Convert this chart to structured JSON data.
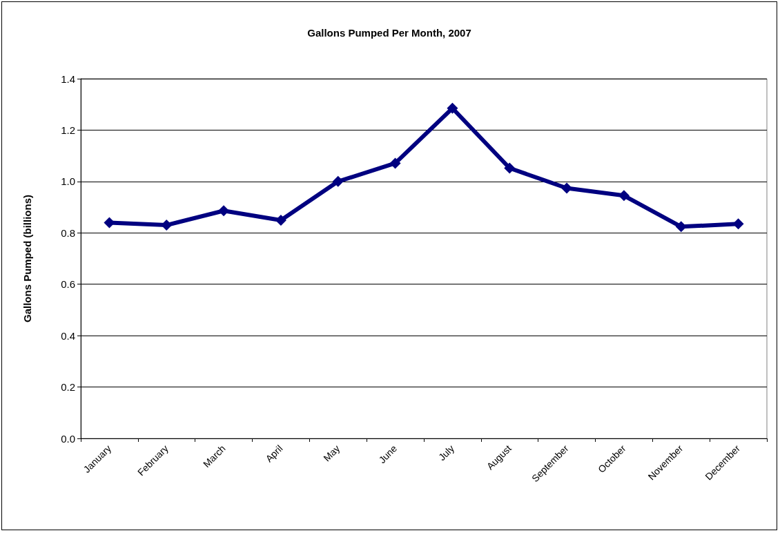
{
  "chart_data": {
    "type": "line",
    "title": "Gallons Pumped Per Month, 2007",
    "ylabel": "Gallons Pumped (billions)",
    "categories": [
      "January",
      "February",
      "March",
      "April",
      "May",
      "June",
      "July",
      "August",
      "September",
      "October",
      "November",
      "December"
    ],
    "series": [
      {
        "color": "#000080",
        "values": [
          0.84,
          0.83,
          0.886,
          0.849,
          1.0,
          1.071,
          1.285,
          1.052,
          0.974,
          0.945,
          0.824,
          0.835
        ]
      }
    ],
    "ylim": [
      0,
      1.4
    ],
    "yticks": [
      {
        "value": 0,
        "label": "0.0"
      },
      {
        "value": 0.2,
        "label": "0.2"
      },
      {
        "value": 0.4,
        "label": "0.4"
      },
      {
        "value": 0.6,
        "label": "0.6"
      },
      {
        "value": 0.8,
        "label": "0.8"
      },
      {
        "value": 1,
        "label": "1.0"
      },
      {
        "value": 1.2,
        "label": "1.2"
      },
      {
        "value": 1.4,
        "label": "1.4"
      }
    ],
    "grid": "y",
    "marker": "diamond"
  }
}
